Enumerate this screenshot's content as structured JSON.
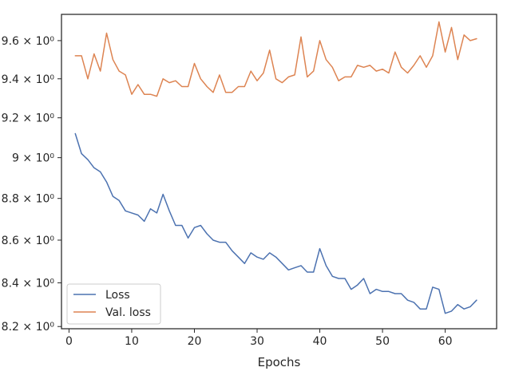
{
  "chart_data": {
    "type": "line",
    "title": "",
    "xlabel": "Epochs",
    "ylabel": "",
    "yscale": "log",
    "xlim": [
      -1.2,
      68.2
    ],
    "ylim": [
      8.19,
      9.74
    ],
    "xticks": [
      0,
      10,
      20,
      30,
      40,
      50,
      60
    ],
    "yticks": [
      {
        "value": 8.2,
        "label": "8.2 × 10⁰"
      },
      {
        "value": 8.4,
        "label": "8.4 × 10⁰"
      },
      {
        "value": 8.6,
        "label": "8.6 × 10⁰"
      },
      {
        "value": 8.8,
        "label": "8.8 × 10⁰"
      },
      {
        "value": 9.0,
        "label": "9 × 10⁰"
      },
      {
        "value": 9.2,
        "label": "9.2 × 10⁰"
      },
      {
        "value": 9.4,
        "label": "9.4 × 10⁰"
      },
      {
        "value": 9.6,
        "label": "9.6 × 10⁰"
      }
    ],
    "grid": false,
    "legend_position": "lower-left",
    "x": [
      1,
      2,
      3,
      4,
      5,
      6,
      7,
      8,
      9,
      10,
      11,
      12,
      13,
      14,
      15,
      16,
      17,
      18,
      19,
      20,
      21,
      22,
      23,
      24,
      25,
      26,
      27,
      28,
      29,
      30,
      31,
      32,
      33,
      34,
      35,
      36,
      37,
      38,
      39,
      40,
      41,
      42,
      43,
      44,
      45,
      46,
      47,
      48,
      49,
      50,
      51,
      52,
      53,
      54,
      55,
      56,
      57,
      58,
      59,
      60,
      61,
      62,
      63,
      64,
      65
    ],
    "series": [
      {
        "name": "Loss",
        "color": "#4c72b0",
        "values": [
          9.12,
          9.02,
          8.99,
          8.95,
          8.93,
          8.88,
          8.81,
          8.79,
          8.74,
          8.73,
          8.72,
          8.69,
          8.75,
          8.73,
          8.82,
          8.74,
          8.67,
          8.67,
          8.61,
          8.66,
          8.67,
          8.63,
          8.6,
          8.59,
          8.59,
          8.55,
          8.52,
          8.49,
          8.54,
          8.52,
          8.51,
          8.54,
          8.52,
          8.49,
          8.46,
          8.47,
          8.48,
          8.45,
          8.45,
          8.56,
          8.48,
          8.43,
          8.42,
          8.42,
          8.37,
          8.39,
          8.42,
          8.35,
          8.37,
          8.36,
          8.36,
          8.35,
          8.35,
          8.32,
          8.31,
          8.28,
          8.28,
          8.38,
          8.37,
          8.26,
          8.27,
          8.3,
          8.28,
          8.29,
          8.32
        ]
      },
      {
        "name": "Val. loss",
        "color": "#dd8452",
        "values": [
          9.52,
          9.52,
          9.4,
          9.53,
          9.44,
          9.64,
          9.5,
          9.44,
          9.42,
          9.32,
          9.37,
          9.32,
          9.32,
          9.31,
          9.4,
          9.38,
          9.39,
          9.36,
          9.36,
          9.48,
          9.4,
          9.36,
          9.33,
          9.42,
          9.33,
          9.33,
          9.36,
          9.36,
          9.44,
          9.39,
          9.43,
          9.55,
          9.4,
          9.38,
          9.41,
          9.42,
          9.62,
          9.41,
          9.44,
          9.6,
          9.5,
          9.46,
          9.39,
          9.41,
          9.41,
          9.47,
          9.46,
          9.47,
          9.44,
          9.45,
          9.43,
          9.54,
          9.46,
          9.43,
          9.47,
          9.52,
          9.46,
          9.52,
          9.7,
          9.54,
          9.67,
          9.5,
          9.63,
          9.6,
          9.61
        ]
      }
    ]
  }
}
